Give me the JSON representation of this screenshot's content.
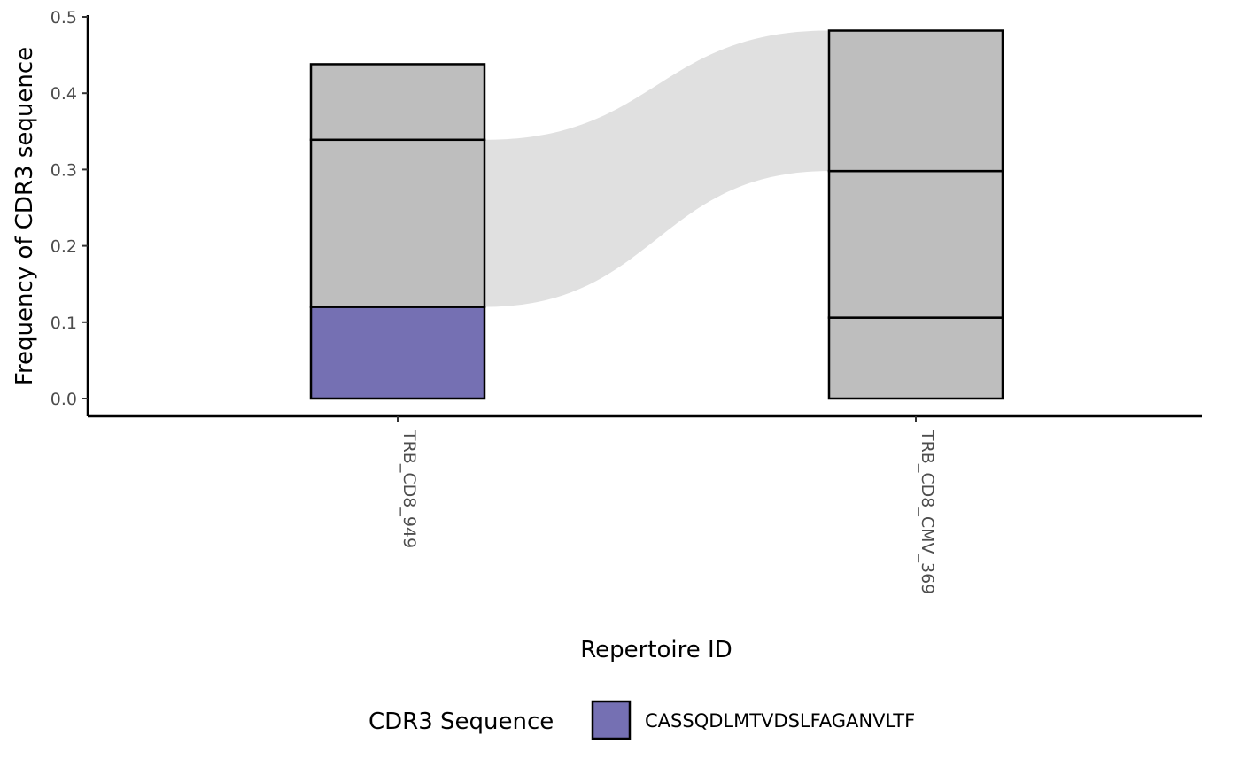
{
  "chart_data": {
    "type": "bar",
    "subtype": "stacked-alluvial",
    "xlabel": "Repertoire ID",
    "ylabel": "Frequency of CDR3 sequence",
    "ylim": [
      0,
      0.5
    ],
    "yticks": [
      "0.0",
      "0.1",
      "0.2",
      "0.3",
      "0.4",
      "0.5"
    ],
    "categories": [
      "TRB_CD8_949",
      "TRB_CD8_CMV_369"
    ],
    "stacks": [
      {
        "category": "TRB_CD8_949",
        "segments": [
          {
            "from": 0,
            "to": 0.12,
            "highlight": true
          },
          {
            "from": 0.12,
            "to": 0.339,
            "highlight": false
          },
          {
            "from": 0.339,
            "to": 0.438,
            "highlight": false
          }
        ]
      },
      {
        "category": "TRB_CD8_CMV_369",
        "segments": [
          {
            "from": 0,
            "to": 0.106,
            "highlight": false
          },
          {
            "from": 0.106,
            "to": 0.298,
            "highlight": false
          },
          {
            "from": 0.298,
            "to": 0.482,
            "highlight": false
          }
        ]
      }
    ],
    "flows": [
      {
        "from_category": "TRB_CD8_949",
        "from_range": [
          0.12,
          0.339
        ],
        "to_category": "TRB_CD8_CMV_369",
        "to_range": [
          0.298,
          0.482
        ]
      }
    ],
    "legend": {
      "title": "CDR3 Sequence",
      "items": [
        {
          "label": "CASSQDLMTVDSLFAGANVLTF",
          "color": "#7570b3"
        }
      ],
      "position": "bottom"
    },
    "colors": {
      "highlight": "#7570b3",
      "other": "#bebebe",
      "flow": "#e0e0e0",
      "outline": "#000000"
    },
    "grid": false
  }
}
